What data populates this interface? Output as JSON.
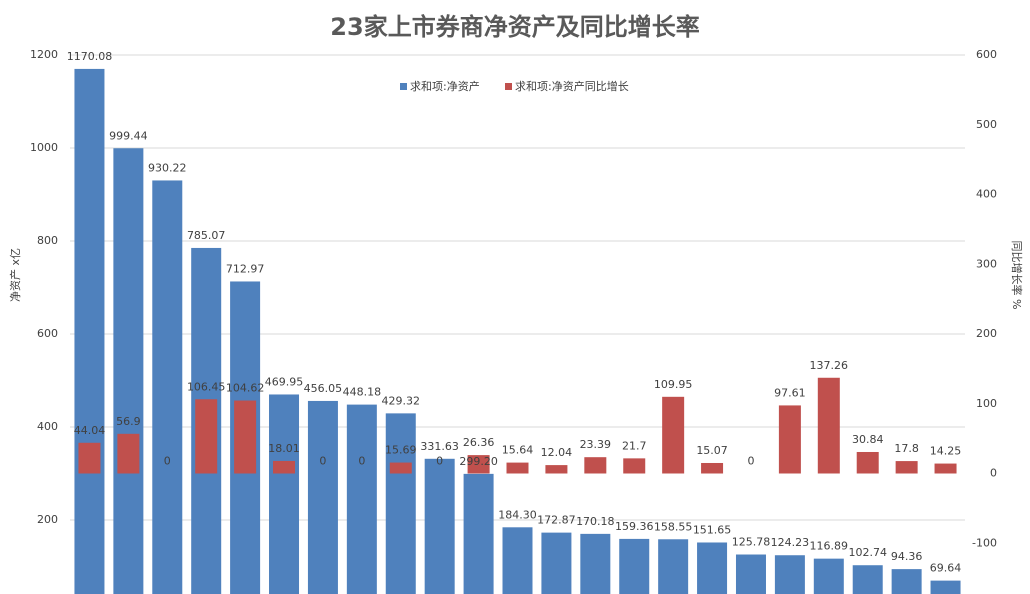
{
  "chart_data": {
    "type": "bar",
    "title": "23家上市券商净资产及同比增长率",
    "y_label": "净资产 x亿",
    "y2_label": "同比增长率 %",
    "categories": [
      null,
      null,
      null,
      null,
      null,
      null,
      null,
      null,
      null,
      null,
      null,
      null,
      null,
      null,
      null,
      null,
      null,
      null,
      null,
      null,
      null,
      null,
      null
    ],
    "series": [
      {
        "name": "求和项:净资产",
        "color": "#4f81bd",
        "values": [
          1170.08,
          999.44,
          930.22,
          785.07,
          712.97,
          469.95,
          456.05,
          448.18,
          429.32,
          331.63,
          299.2,
          184.3,
          172.87,
          170.18,
          159.36,
          158.55,
          151.65,
          125.78,
          124.23,
          116.89,
          102.74,
          94.36,
          69.64
        ],
        "value_labels": [
          "1170.08",
          "999.44",
          "930.22",
          "785.07",
          "712.97",
          "469.95",
          "456.05",
          "448.18",
          "429.32",
          "331.63",
          "299.20",
          "184.30",
          "172.87",
          "170.18",
          "159.36",
          "158.55",
          "151.65",
          "125.78",
          "124.23",
          "116.89",
          "102.74",
          "94.36",
          "69.64"
        ]
      },
      {
        "name": "求和项:净资产同比增长",
        "color": "#c0504d",
        "axis": "y2",
        "values": [
          44.04,
          56.9,
          0,
          106.45,
          104.62,
          18.01,
          0,
          0,
          15.69,
          0,
          26.36,
          15.64,
          12.04,
          23.39,
          21.7,
          109.95,
          15.07,
          0,
          97.61,
          137.26,
          30.84,
          17.8,
          14.25
        ]
      }
    ],
    "ylim": [
      0,
      1200
    ],
    "yticks": [
      200,
      400,
      600,
      800,
      1000,
      1200
    ],
    "y2lim": [
      -200,
      600
    ],
    "y2ticks": [
      -100,
      0,
      100,
      200,
      300,
      400,
      500,
      600
    ],
    "grid": true,
    "legend": "top"
  }
}
